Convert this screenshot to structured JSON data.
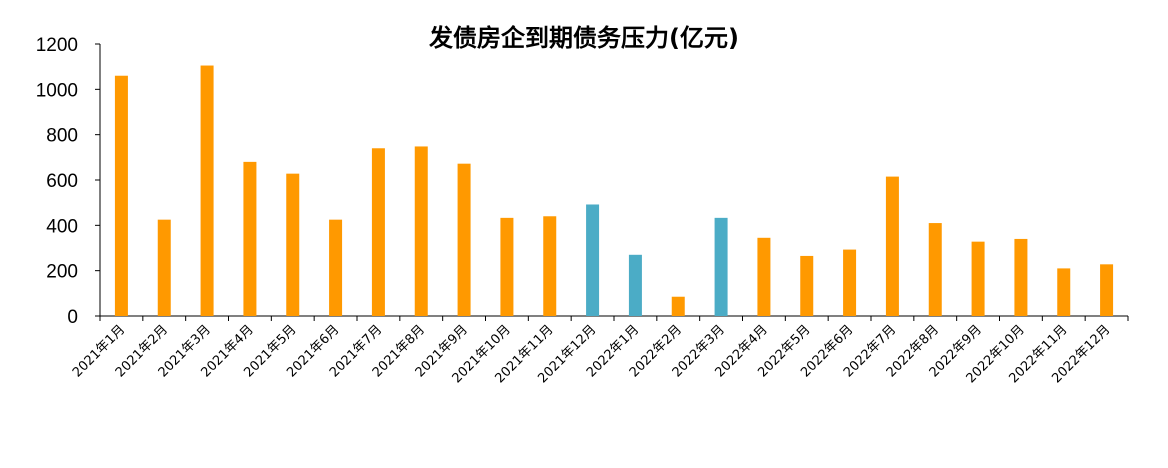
{
  "chart_data": {
    "type": "bar",
    "title": "发债房企到期债务压力(亿元)",
    "xlabel": "",
    "ylabel": "",
    "ylim": [
      0,
      1200
    ],
    "yticks": [
      0,
      200,
      400,
      600,
      800,
      1000,
      1200
    ],
    "grid": false,
    "legend": "none",
    "categories": [
      "2021年1月",
      "2021年2月",
      "2021年3月",
      "2021年4月",
      "2021年5月",
      "2021年6月",
      "2021年7月",
      "2021年8月",
      "2021年9月",
      "2021年10月",
      "2021年11月",
      "2021年12月",
      "2022年1月",
      "2022年2月",
      "2022年3月",
      "2022年4月",
      "2022年5月",
      "2022年6月",
      "2022年7月",
      "2022年8月",
      "2022年9月",
      "2022年10月",
      "2022年11月",
      "2022年12月"
    ],
    "values": [
      1060,
      425,
      1105,
      680,
      628,
      425,
      740,
      748,
      672,
      433,
      440,
      492,
      270,
      85,
      433,
      345,
      265,
      293,
      615,
      410,
      328,
      340,
      210,
      228
    ],
    "bar_colors": [
      "#FF9900",
      "#FF9900",
      "#FF9900",
      "#FF9900",
      "#FF9900",
      "#FF9900",
      "#FF9900",
      "#FF9900",
      "#FF9900",
      "#FF9900",
      "#FF9900",
      "#4BACC6",
      "#4BACC6",
      "#FF9900",
      "#4BACC6",
      "#FF9900",
      "#FF9900",
      "#FF9900",
      "#FF9900",
      "#FF9900",
      "#FF9900",
      "#FF9900",
      "#FF9900",
      "#FF9900"
    ]
  },
  "colors": {
    "primary": "#FF9900",
    "highlight": "#4BACC6",
    "axis": "#000000"
  }
}
